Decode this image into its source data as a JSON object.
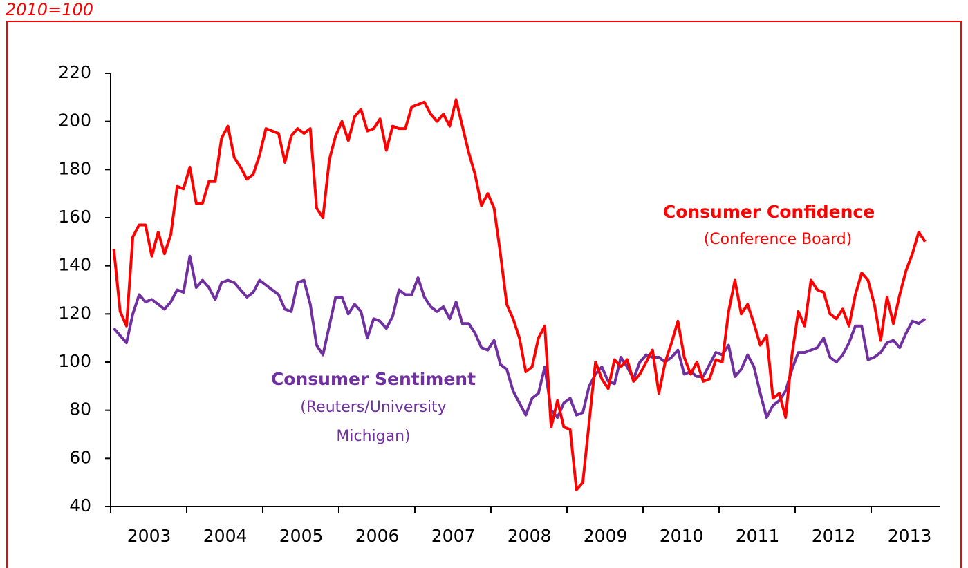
{
  "chart_data": {
    "type": "line",
    "title": "2010=100",
    "categories": [
      null,
      null,
      null,
      null,
      null,
      null,
      "2003",
      null,
      null,
      null,
      null,
      null,
      null,
      null,
      null,
      null,
      null,
      null,
      "2004",
      null,
      null,
      null,
      null,
      null,
      null,
      null,
      null,
      null,
      null,
      null,
      "2005",
      null,
      null,
      null,
      null,
      null,
      null,
      null,
      null,
      null,
      null,
      null,
      "2006",
      null,
      null,
      null,
      null,
      null,
      null,
      null,
      null,
      null,
      null,
      null,
      "2007",
      null,
      null,
      null,
      null,
      null,
      null,
      null,
      null,
      null,
      null,
      null,
      "2008",
      null,
      null,
      null,
      null,
      null,
      null,
      null,
      null,
      null,
      null,
      null,
      "2009",
      null,
      null,
      null,
      null,
      null,
      null,
      null,
      null,
      null,
      null,
      null,
      "2010",
      null,
      null,
      null,
      null,
      null,
      null,
      null,
      null,
      null,
      null,
      null,
      "2011",
      null,
      null,
      null,
      null,
      null,
      null,
      null,
      null,
      null,
      null,
      null,
      "2012",
      null,
      null,
      null,
      null,
      null,
      null,
      null,
      null,
      null,
      null,
      null,
      "2013",
      null,
      null
    ],
    "series": [
      {
        "name": "Consumer Confidence",
        "color": "#ff0000",
        "values": [
          147,
          121,
          115,
          152,
          157,
          157,
          144,
          154,
          145,
          153,
          173,
          172,
          181,
          166,
          166,
          175,
          175,
          193,
          198,
          185,
          181,
          176,
          178,
          186,
          197,
          196,
          195,
          183,
          194,
          197,
          195,
          197,
          164,
          160,
          184,
          194,
          200,
          192,
          202,
          205,
          196,
          197,
          201,
          188,
          198,
          197,
          197,
          206,
          207,
          208,
          203,
          200,
          203,
          198,
          209,
          198,
          187,
          178,
          165,
          170,
          164,
          145,
          124,
          118,
          110,
          96,
          98,
          110,
          115,
          73,
          84,
          73,
          72,
          47,
          50,
          75,
          100,
          93,
          89,
          101,
          98,
          101,
          92,
          95,
          100,
          105,
          87,
          100,
          108,
          117,
          102,
          95,
          100,
          92,
          93,
          101,
          100,
          121,
          134,
          120,
          124,
          116,
          107,
          111,
          85,
          87,
          77,
          103,
          121,
          115,
          134,
          130,
          129,
          120,
          118,
          122,
          115,
          128,
          137,
          134,
          124,
          109,
          127,
          116,
          128,
          138,
          145,
          154,
          150
        ]
      },
      {
        "name": "Consumer Sentiment",
        "color": "#7030a0",
        "values": [
          114,
          111,
          108,
          120,
          128,
          125,
          126,
          124,
          122,
          125,
          130,
          129,
          144,
          131,
          134,
          131,
          126,
          133,
          134,
          133,
          130,
          127,
          129,
          134,
          132,
          130,
          128,
          122,
          121,
          133,
          134,
          124,
          107,
          103,
          115,
          127,
          127,
          120,
          124,
          121,
          110,
          118,
          117,
          114,
          119,
          130,
          128,
          128,
          135,
          127,
          123,
          121,
          123,
          118,
          125,
          116,
          116,
          112,
          106,
          105,
          109,
          99,
          97,
          88,
          83,
          78,
          85,
          87,
          98,
          80,
          77,
          83,
          85,
          78,
          79,
          90,
          95,
          98,
          92,
          91,
          102,
          98,
          93,
          100,
          103,
          102,
          102,
          100,
          102,
          105,
          95,
          96,
          94,
          94,
          99,
          104,
          103,
          107,
          94,
          97,
          103,
          98,
          87,
          77,
          82,
          84,
          88,
          97,
          104,
          104,
          105,
          106,
          110,
          102,
          100,
          103,
          108,
          115,
          115,
          101,
          102,
          104,
          108,
          109,
          106,
          112,
          117,
          116,
          118
        ]
      }
    ],
    "annotations": [
      "(Conference Board)",
      "(Reuters/University",
      "Michigan)"
    ],
    "ylim": [
      40,
      220
    ],
    "yticks": [
      40,
      60,
      80,
      100,
      120,
      140,
      160,
      180,
      200,
      220
    ],
    "grid": false
  }
}
